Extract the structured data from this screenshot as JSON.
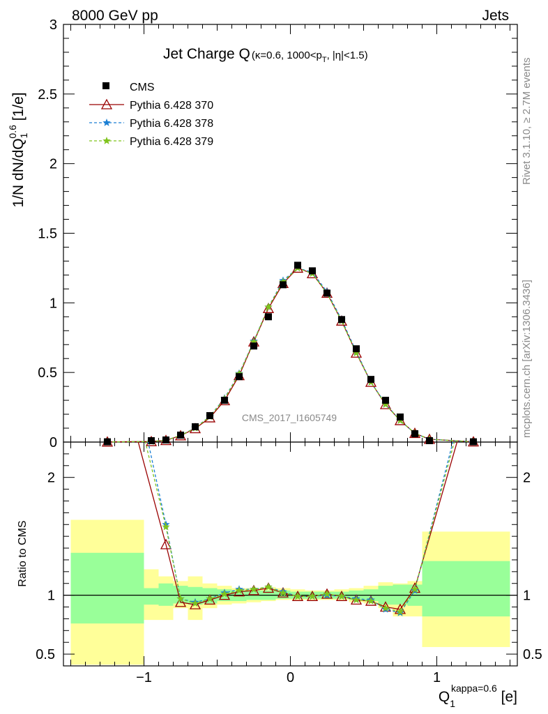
{
  "header": {
    "left": "8000 GeV pp",
    "right": "Jets"
  },
  "title": {
    "main": "Jet Charge Q",
    "sub": "(κ=0.6, 1000<p",
    "sub_sub": "T",
    "sub_end": ", |η|<1.5)"
  },
  "watermark": "CMS_2017_I1605749",
  "side_text": {
    "rivet": "Rivet 3.1.10, ≥ 2.7M events",
    "mcplots": "mcplots.cern.ch [arXiv:1306.3436]"
  },
  "ylabel_top": {
    "a": "1/N dN/dQ",
    "sub": "1",
    "sup": "0.6",
    "b": " [1/e]"
  },
  "ylabel_bottom": "Ratio to CMS",
  "xlabel": {
    "a": "Q",
    "sub": "1",
    "sup": "kappa=0.6",
    "b": " [e]"
  },
  "legend": [
    "CMS",
    "Pythia 6.428 370",
    "Pythia 6.428 378",
    "Pythia 6.428 379"
  ],
  "colors": {
    "data": "#000000",
    "p370": "#990000",
    "p378": "#1a7fd4",
    "p379": "#7fc31c",
    "band_outer": "#ffff99",
    "band_inner": "#99ff99"
  },
  "chart_data": {
    "type": "scatter",
    "x": [
      -1.25,
      -0.95,
      -0.85,
      -0.75,
      -0.65,
      -0.55,
      -0.45,
      -0.35,
      -0.25,
      -0.15,
      -0.05,
      0.05,
      0.15,
      0.25,
      0.35,
      0.45,
      0.55,
      0.65,
      0.75,
      0.85,
      0.95,
      1.25
    ],
    "xlim": [
      -1.55,
      1.55
    ],
    "xticks": [
      "−1",
      "0",
      "1"
    ],
    "top": {
      "ylim": [
        0,
        3
      ],
      "yticks": [
        "0",
        "0.5",
        "1",
        "1.5",
        "2",
        "2.5",
        "3"
      ],
      "series": [
        {
          "name": "CMS",
          "values": [
            0.002,
            0.01,
            0.015,
            0.05,
            0.11,
            0.19,
            0.3,
            0.47,
            0.69,
            0.9,
            1.13,
            1.27,
            1.23,
            1.07,
            0.88,
            0.67,
            0.45,
            0.3,
            0.18,
            0.06,
            0.01,
            0.002
          ]
        },
        {
          "name": "Pythia 6.428 370",
          "values": [
            0.001,
            0.004,
            0.012,
            0.046,
            0.097,
            0.175,
            0.298,
            0.478,
            0.72,
            0.96,
            1.14,
            1.25,
            1.21,
            1.07,
            0.87,
            0.64,
            0.43,
            0.27,
            0.155,
            0.063,
            0.02,
            0.002
          ]
        },
        {
          "name": "Pythia 6.428 378",
          "values": [
            0.001,
            0.004,
            0.013,
            0.048,
            0.102,
            0.185,
            0.315,
            0.493,
            0.725,
            0.97,
            1.16,
            1.25,
            1.22,
            1.08,
            0.88,
            0.65,
            0.43,
            0.275,
            0.155,
            0.063,
            0.02,
            0.002
          ]
        },
        {
          "name": "Pythia 6.428 379",
          "values": [
            0.001,
            0.004,
            0.013,
            0.048,
            0.1,
            0.183,
            0.31,
            0.49,
            0.72,
            0.97,
            1.15,
            1.25,
            1.21,
            1.07,
            0.87,
            0.64,
            0.43,
            0.27,
            0.155,
            0.064,
            0.02,
            0.002
          ]
        }
      ]
    },
    "ratio": {
      "ylim": [
        0.4,
        2.3
      ],
      "yticks": [
        "0.5",
        "1",
        "2"
      ],
      "bins": [
        {
          "lo": -1.5,
          "hi": -1.0,
          "inner": [
            0.76,
            1.36
          ],
          "outer": [
            0.41,
            1.64
          ]
        },
        {
          "lo": -1.0,
          "hi": -0.9,
          "inner": [
            0.92,
            1.06
          ],
          "outer": [
            0.79,
            1.22
          ]
        },
        {
          "lo": -0.9,
          "hi": -0.8,
          "inner": [
            0.91,
            1.1
          ],
          "outer": [
            0.79,
            1.16
          ]
        },
        {
          "lo": -0.8,
          "hi": -0.7,
          "inner": [
            0.93,
            1.08
          ],
          "outer": [
            0.89,
            1.12
          ]
        },
        {
          "lo": -0.7,
          "hi": -0.6,
          "inner": [
            0.92,
            1.07
          ],
          "outer": [
            0.79,
            1.16
          ]
        },
        {
          "lo": -0.6,
          "hi": -0.5,
          "inner": [
            0.93,
            1.06
          ],
          "outer": [
            0.89,
            1.1
          ]
        },
        {
          "lo": -0.5,
          "hi": -0.4,
          "inner": [
            0.95,
            1.05
          ],
          "outer": [
            0.92,
            1.08
          ]
        },
        {
          "lo": -0.4,
          "hi": -0.3,
          "inner": [
            0.95,
            1.04
          ],
          "outer": [
            0.93,
            1.06
          ]
        },
        {
          "lo": -0.3,
          "hi": -0.2,
          "inner": [
            0.96,
            1.04
          ],
          "outer": [
            0.94,
            1.06
          ]
        },
        {
          "lo": -0.2,
          "hi": -0.1,
          "inner": [
            0.96,
            1.04
          ],
          "outer": [
            0.95,
            1.07
          ]
        },
        {
          "lo": -0.1,
          "hi": 0.0,
          "inner": [
            0.97,
            1.04
          ],
          "outer": [
            0.96,
            1.06
          ]
        },
        {
          "lo": 0.0,
          "hi": 0.1,
          "inner": [
            0.97,
            1.03
          ],
          "outer": [
            0.96,
            1.05
          ]
        },
        {
          "lo": 0.1,
          "hi": 0.2,
          "inner": [
            0.97,
            1.03
          ],
          "outer": [
            0.96,
            1.04
          ]
        },
        {
          "lo": 0.2,
          "hi": 0.3,
          "inner": [
            0.97,
            1.03
          ],
          "outer": [
            0.96,
            1.04
          ]
        },
        {
          "lo": 0.3,
          "hi": 0.4,
          "inner": [
            0.97,
            1.03
          ],
          "outer": [
            0.96,
            1.05
          ]
        },
        {
          "lo": 0.4,
          "hi": 0.5,
          "inner": [
            0.96,
            1.04
          ],
          "outer": [
            0.94,
            1.06
          ]
        },
        {
          "lo": 0.5,
          "hi": 0.6,
          "inner": [
            0.95,
            1.05
          ],
          "outer": [
            0.93,
            1.08
          ]
        },
        {
          "lo": 0.6,
          "hi": 0.7,
          "inner": [
            0.92,
            1.08
          ],
          "outer": [
            0.89,
            1.11
          ]
        },
        {
          "lo": 0.7,
          "hi": 0.8,
          "inner": [
            0.92,
            1.09
          ],
          "outer": [
            0.82,
            1.1
          ]
        },
        {
          "lo": 0.8,
          "hi": 0.9,
          "inner": [
            0.91,
            1.09
          ],
          "outer": [
            0.82,
            1.12
          ]
        },
        {
          "lo": 0.9,
          "hi": 1.5,
          "inner": [
            0.82,
            1.29
          ],
          "outer": [
            0.56,
            1.54
          ]
        }
      ],
      "series": [
        {
          "name": "Pythia 6.428 370",
          "x": [
            -1.05,
            -0.85,
            -0.75,
            -0.65,
            -0.55,
            -0.45,
            -0.35,
            -0.25,
            -0.15,
            -0.05,
            0.05,
            0.15,
            0.25,
            0.35,
            0.45,
            0.55,
            0.65,
            0.75,
            0.85,
            1.15
          ],
          "values": [
            2.35,
            1.43,
            0.94,
            0.92,
            0.96,
            1.0,
            1.03,
            1.04,
            1.06,
            1.02,
            0.99,
            0.99,
            1.01,
            0.99,
            0.96,
            0.95,
            0.9,
            0.88,
            1.06,
            2.35
          ]
        },
        {
          "name": "Pythia 6.428 378",
          "x": [
            -0.98,
            -0.85,
            -0.75,
            -0.65,
            -0.55,
            -0.45,
            -0.35,
            -0.25,
            -0.15,
            -0.05,
            0.05,
            0.15,
            0.25,
            0.35,
            0.45,
            0.55,
            0.65,
            0.75,
            0.85,
            1.12
          ],
          "values": [
            2.35,
            1.6,
            0.97,
            0.94,
            0.97,
            1.02,
            1.05,
            1.05,
            1.07,
            1.03,
            0.99,
            0.99,
            1.0,
            0.99,
            0.97,
            0.96,
            0.88,
            0.85,
            1.04,
            2.35
          ]
        },
        {
          "name": "Pythia 6.428 379",
          "x": [
            -1.0,
            -0.85,
            -0.75,
            -0.65,
            -0.55,
            -0.45,
            -0.35,
            -0.25,
            -0.15,
            -0.05,
            0.05,
            0.15,
            0.25,
            0.35,
            0.45,
            0.55,
            0.65,
            0.75,
            0.85,
            1.13
          ],
          "values": [
            2.35,
            1.58,
            0.97,
            0.93,
            0.97,
            1.01,
            1.04,
            1.05,
            1.07,
            1.02,
            0.99,
            0.99,
            1.01,
            0.99,
            0.96,
            0.95,
            0.89,
            0.86,
            1.05,
            2.35
          ]
        }
      ]
    }
  }
}
